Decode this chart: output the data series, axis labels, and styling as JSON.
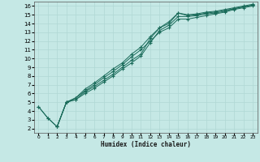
{
  "xlabel": "Humidex (Indice chaleur)",
  "bg_color": "#c5e8e5",
  "line_color": "#1a6b5a",
  "grid_color": "#b0d8d4",
  "xlim": [
    -0.5,
    23.5
  ],
  "ylim": [
    1.5,
    16.5
  ],
  "xticks": [
    0,
    1,
    2,
    3,
    4,
    5,
    6,
    7,
    8,
    9,
    10,
    11,
    12,
    13,
    14,
    15,
    16,
    17,
    18,
    19,
    20,
    21,
    22,
    23
  ],
  "yticks": [
    2,
    3,
    4,
    5,
    6,
    7,
    8,
    9,
    10,
    11,
    12,
    13,
    14,
    15,
    16
  ],
  "lines": [
    {
      "x": [
        0,
        1,
        2,
        3,
        4,
        5,
        6,
        7,
        8,
        9,
        10,
        11,
        12,
        13,
        14,
        15,
        16,
        17,
        18,
        19,
        20,
        21,
        22,
        23
      ],
      "y": [
        4.5,
        3.2,
        2.2,
        5.0,
        5.3,
        6.2,
        6.8,
        7.5,
        8.2,
        9.0,
        9.8,
        10.5,
        12.3,
        13.5,
        14.0,
        15.2,
        15.0,
        15.1,
        15.3,
        15.4,
        15.6,
        15.8,
        16.0,
        16.2
      ]
    },
    {
      "x": [
        0,
        1,
        2,
        3,
        4,
        5,
        6,
        7,
        8,
        9,
        10,
        11,
        12,
        13,
        14,
        15,
        16,
        17,
        18,
        19,
        20,
        21,
        22,
        23
      ],
      "y": [
        4.5,
        3.2,
        2.2,
        5.0,
        5.3,
        6.0,
        6.6,
        7.3,
        8.0,
        8.8,
        9.5,
        10.3,
        11.8,
        13.2,
        13.8,
        14.8,
        14.8,
        14.9,
        15.1,
        15.2,
        15.4,
        15.7,
        15.9,
        16.1
      ]
    },
    {
      "x": [
        2,
        3,
        4,
        5,
        6,
        7,
        8,
        9,
        10,
        11,
        12,
        13,
        14,
        15,
        16,
        17,
        18,
        19,
        20,
        21,
        22,
        23
      ],
      "y": [
        2.2,
        5.0,
        5.5,
        6.3,
        7.0,
        7.8,
        8.5,
        9.3,
        10.2,
        11.0,
        12.0,
        13.0,
        13.5,
        14.5,
        14.5,
        14.7,
        14.9,
        15.1,
        15.3,
        15.6,
        15.8,
        16.0
      ]
    },
    {
      "x": [
        2,
        3,
        4,
        5,
        6,
        7,
        8,
        9,
        10,
        11,
        12,
        13,
        14,
        15,
        16,
        17,
        18,
        19,
        20,
        21,
        22,
        23
      ],
      "y": [
        2.2,
        5.0,
        5.5,
        6.5,
        7.2,
        8.0,
        8.8,
        9.5,
        10.5,
        11.3,
        12.5,
        13.5,
        14.2,
        15.2,
        14.9,
        15.0,
        15.2,
        15.3,
        15.5,
        15.7,
        15.9,
        16.1
      ]
    }
  ]
}
